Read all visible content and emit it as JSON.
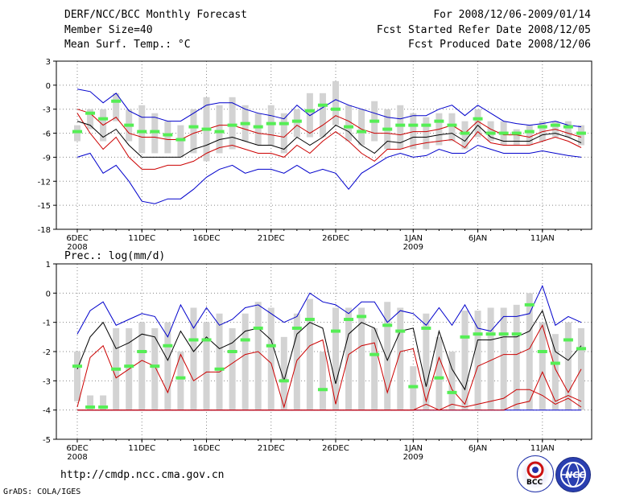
{
  "header": {
    "title": "DERF/NCC/BCC Monthly Forecast",
    "member_size": "Member Size=40",
    "variable": "Mean Surf. Temp.: °C",
    "forecast_period": "For 2008/12/06-2009/01/14",
    "start_date": "Fcst Started Refer Date 2008/12/05",
    "produced_date": "Fcst Produced Date 2008/12/06"
  },
  "footer": {
    "url": "http://cmdp.ncc.cma.gov.cn",
    "grads_credit": "GrADS: COLA/IGES",
    "logo_left": "BCC",
    "logo_right": "NCC"
  },
  "colors": {
    "max_min": "#0000cc",
    "spread": "#cc0000",
    "mean": "#000000",
    "box": "#d3d3d3",
    "median": "#55ee55"
  },
  "chart_data": [
    {
      "type": "line",
      "title": "Mean Surf. Temp.: °C",
      "ylabel": "°C",
      "ylim": [
        -18,
        3
      ],
      "yticks": [
        3,
        0,
        -3,
        -6,
        -9,
        -12,
        -15,
        -18
      ],
      "xtick_labels": [
        {
          "day": 0,
          "label": "6DEC",
          "sub": "2008"
        },
        {
          "day": 5,
          "label": "11DEC"
        },
        {
          "day": 10,
          "label": "16DEC"
        },
        {
          "day": 15,
          "label": "21DEC"
        },
        {
          "day": 20,
          "label": "26DEC"
        },
        {
          "day": 26,
          "label": "1JAN",
          "sub": "2009"
        },
        {
          "day": 31,
          "label": "6JAN"
        },
        {
          "day": 36,
          "label": "11JAN"
        }
      ],
      "days": 40,
      "series": [
        {
          "name": "max",
          "values": [
            -0.5,
            -0.8,
            -2.2,
            -1,
            -3.2,
            -4,
            -4,
            -4.5,
            -4.5,
            -3.5,
            -2.5,
            -2.2,
            -2.2,
            -3,
            -3.5,
            -3.8,
            -4.2,
            -2.5,
            -3.8,
            -2.8,
            -1.8,
            -2.5,
            -3,
            -3.5,
            -4,
            -4.2,
            -3.8,
            -3.8,
            -3,
            -2.5,
            -3.8,
            -2.5,
            -3.5,
            -4.5,
            -4.8,
            -5,
            -4.8,
            -4.5,
            -5,
            -5.2
          ]
        },
        {
          "name": "p75",
          "values": [
            -3,
            -3.5,
            -5,
            -4,
            -6,
            -6.5,
            -6.5,
            -6.8,
            -6.8,
            -6,
            -5.5,
            -5,
            -5,
            -5.5,
            -6,
            -6.2,
            -6.5,
            -5,
            -6,
            -5,
            -3.8,
            -4.5,
            -5.5,
            -6,
            -6,
            -6.2,
            -5.8,
            -5.8,
            -5.5,
            -5,
            -6,
            -4.5,
            -5.5,
            -6.2,
            -6.2,
            -6.5,
            -5.8,
            -5.5,
            -6,
            -6.5
          ]
        },
        {
          "name": "mean",
          "values": [
            -4.5,
            -5,
            -6.5,
            -5.5,
            -7.5,
            -9,
            -9,
            -9,
            -9,
            -8,
            -7.5,
            -6.8,
            -6.5,
            -7,
            -7.5,
            -7.5,
            -8,
            -6.5,
            -7.5,
            -6.5,
            -5,
            -5.8,
            -7.5,
            -8.5,
            -7,
            -7.2,
            -6.5,
            -6.5,
            -6.2,
            -6,
            -7,
            -5,
            -6.5,
            -7,
            -7,
            -7,
            -6.2,
            -6,
            -6.5,
            -7.2
          ]
        },
        {
          "name": "p25",
          "values": [
            -3.5,
            -6,
            -8,
            -6.5,
            -9,
            -10.5,
            -10.5,
            -10,
            -10,
            -9.5,
            -8.5,
            -7.8,
            -7.5,
            -8,
            -8.5,
            -8.5,
            -9,
            -7.5,
            -8.5,
            -7,
            -5.8,
            -7,
            -8.5,
            -9.5,
            -8,
            -8,
            -7.5,
            -7.2,
            -7,
            -6.8,
            -7.8,
            -5.8,
            -7.2,
            -7.5,
            -7.5,
            -7.5,
            -7,
            -6.5,
            -7,
            -7.8
          ]
        },
        {
          "name": "min",
          "values": [
            -9,
            -8.5,
            -11,
            -10,
            -12,
            -14.5,
            -14.8,
            -14.2,
            -14.2,
            -13,
            -11.5,
            -10.5,
            -10,
            -11,
            -10.5,
            -10.5,
            -11,
            -10,
            -11,
            -10.5,
            -11,
            -13,
            -11,
            -10,
            -9,
            -8.5,
            -9,
            -8.8,
            -8,
            -8.5,
            -8.5,
            -7.5,
            -8,
            -8.5,
            -8.5,
            -8.5,
            -8.2,
            -8.5,
            -8.8,
            -9
          ]
        },
        {
          "name": "median",
          "values": [
            -5.8,
            -3.5,
            -4.2,
            -2,
            -5,
            -5.8,
            -5.8,
            -6.2,
            -6.8,
            -5.2,
            -5.5,
            -5.8,
            -5,
            -4.8,
            -5.2,
            -4.8,
            -4.8,
            -4.5,
            -3.2,
            -2.5,
            -3,
            -5.2,
            -5.8,
            -4.5,
            -5.5,
            -5,
            -5,
            -5,
            -4.5,
            -5,
            -6,
            -4.2,
            -6,
            -6,
            -6,
            -5.8,
            -5.2,
            -5,
            -5.2,
            -6
          ]
        },
        {
          "name": "box_top",
          "values": [
            -5,
            -3,
            -3,
            -1,
            -3,
            -2.5,
            -3.5,
            -4.5,
            -5,
            -3,
            -1.5,
            -2.5,
            -1.5,
            -2.5,
            -3.5,
            -2.5,
            -3.5,
            -3,
            -1,
            -1,
            0.5,
            -2.5,
            -3,
            -2,
            -3,
            -2.5,
            -3.5,
            -4,
            -3.5,
            -3.5,
            -4.5,
            -3,
            -4.5,
            -4.5,
            -5.5,
            -5,
            -4.5,
            -4.5,
            -4.5,
            -5
          ]
        },
        {
          "name": "box_bottom",
          "values": [
            -7,
            -5.5,
            -7,
            -4.5,
            -7,
            -8.5,
            -8.5,
            -8.5,
            -9,
            -8.5,
            -9.5,
            -8.5,
            -8,
            -7,
            -7.5,
            -7.5,
            -8.5,
            -6.5,
            -6.5,
            -6.5,
            -5,
            -7,
            -7.5,
            -7,
            -8,
            -8,
            -8,
            -8,
            -7.5,
            -7,
            -8,
            -6.5,
            -7,
            -7.5,
            -7.5,
            -7.5,
            -7,
            -6.5,
            -6.5,
            -7.5
          ]
        }
      ]
    },
    {
      "type": "line",
      "title": "Prec.: log(mm/d)",
      "ylabel": "log(mm/d)",
      "ylim": [
        -5,
        1
      ],
      "yticks": [
        1,
        0,
        -1,
        -2,
        -3,
        -4,
        -5
      ],
      "xtick_labels": [
        {
          "day": 0,
          "label": "6DEC",
          "sub": "2008"
        },
        {
          "day": 5,
          "label": "11DEC"
        },
        {
          "day": 10,
          "label": "16DEC"
        },
        {
          "day": 15,
          "label": "21DEC"
        },
        {
          "day": 20,
          "label": "26DEC"
        },
        {
          "day": 26,
          "label": "1JAN",
          "sub": "2009"
        },
        {
          "day": 31,
          "label": "6JAN"
        },
        {
          "day": 36,
          "label": "11JAN"
        }
      ],
      "days": 40,
      "series": [
        {
          "name": "max",
          "values": [
            -1.4,
            -0.6,
            -0.3,
            -1.1,
            -0.9,
            -0.7,
            -0.8,
            -1.5,
            -0.4,
            -1.2,
            -0.5,
            -1.1,
            -0.9,
            -0.5,
            -0.4,
            -0.7,
            -1,
            -0.8,
            0,
            -0.3,
            -0.4,
            -0.7,
            -0.3,
            -0.3,
            -1,
            -0.6,
            -0.7,
            -1.1,
            -0.5,
            -1.1,
            -0.4,
            -1.2,
            -1.3,
            -0.8,
            -0.8,
            -0.7,
            0.25,
            -1.1,
            -0.8,
            -1
          ]
        },
        {
          "name": "mean",
          "values": [
            -2.6,
            -1.5,
            -1,
            -1.9,
            -1.7,
            -1.4,
            -1.5,
            -2.3,
            -1.3,
            -2,
            -1.5,
            -1.9,
            -1.7,
            -1.3,
            -1.2,
            -1.6,
            -3,
            -1.4,
            -1,
            -1.2,
            -3.1,
            -1.4,
            -1,
            -1.2,
            -2.3,
            -1.3,
            -1.2,
            -3.2,
            -1.3,
            -2.6,
            -3.3,
            -1.6,
            -1.6,
            -1.5,
            -1.5,
            -1.3,
            -0.6,
            -2,
            -2.3,
            -1.8
          ]
        },
        {
          "name": "p25",
          "values": [
            -3.9,
            -2.2,
            -1.8,
            -2.9,
            -2.6,
            -2.3,
            -2.5,
            -3.4,
            -2.1,
            -3,
            -2.7,
            -2.7,
            -2.4,
            -2.1,
            -2,
            -2.4,
            -3.9,
            -2.3,
            -1.8,
            -1.6,
            -3.8,
            -2.1,
            -1.8,
            -1.7,
            -3.4,
            -2,
            -1.9,
            -3.7,
            -2.2,
            -3.3,
            -3.8,
            -2.5,
            -2.3,
            -2.1,
            -2.1,
            -1.9,
            -1.1,
            -2.6,
            -3.4,
            -2.6
          ]
        },
        {
          "name": "p75",
          "values": [
            -4,
            -4,
            -4,
            -4,
            -4,
            -4,
            -4,
            -4,
            -4,
            -4,
            -4,
            -4,
            -4,
            -4,
            -4,
            -4,
            -4,
            -4,
            -4,
            -4,
            -4,
            -4,
            -4,
            -4,
            -4,
            -4,
            -4,
            -4,
            -4,
            -4,
            -4,
            -4,
            -4,
            -4,
            -3.8,
            -3.7,
            -2.7,
            -3.7,
            -3.5,
            -3.7
          ]
        },
        {
          "name": "p25b",
          "values": [
            -4,
            -4,
            -4,
            -4,
            -4,
            -4,
            -4,
            -4,
            -4,
            -4,
            -4,
            -4,
            -4,
            -4,
            -4,
            -4,
            -4,
            -4,
            -4,
            -4,
            -4,
            -4,
            -4,
            -4,
            -4,
            -4,
            -4,
            -3.8,
            -4,
            -3.8,
            -3.9,
            -3.8,
            -3.7,
            -3.6,
            -3.3,
            -3.3,
            -3.5,
            -3.8,
            -3.6,
            -3.9
          ]
        },
        {
          "name": "min",
          "values": [
            -4,
            -4,
            -4,
            -4,
            -4,
            -4,
            -4,
            -4,
            -4,
            -4,
            -4,
            -4,
            -4,
            -4,
            -4,
            -4,
            -4,
            -4,
            -4,
            -4,
            -4,
            -4,
            -4,
            -4,
            -4,
            -4,
            -4,
            -4,
            -4,
            -4,
            -4,
            -4,
            -4,
            -4,
            -4,
            -4,
            -4,
            -4,
            -4,
            -4
          ]
        },
        {
          "name": "median",
          "values": [
            -2.5,
            -3.9,
            -3.9,
            -2.6,
            -2.5,
            -2,
            -2.5,
            -1.8,
            -2.9,
            -1.6,
            -1.6,
            -2.6,
            -2,
            -1.6,
            -1.2,
            -1.8,
            -3,
            -1.2,
            -0.9,
            -3.3,
            -1.3,
            -0.9,
            -0.8,
            -2.1,
            -1.1,
            -1.3,
            -3.2,
            -1.2,
            -2.9,
            -3.4,
            -1.5,
            -1.4,
            -1.4,
            -1.4,
            -1.4,
            -0.4,
            -2,
            -2.4,
            -1.6,
            -1.9
          ]
        },
        {
          "name": "box_top",
          "values": [
            -2,
            -3.5,
            -3.5,
            -1.2,
            -1.2,
            -1,
            -1.2,
            -1,
            -2,
            -0.5,
            -1,
            -0.7,
            -1.2,
            -0.7,
            -0.3,
            -0.5,
            -1.5,
            -0.7,
            -0.2,
            -2,
            -0.5,
            -0.5,
            -0.5,
            -1.2,
            -0.3,
            -0.5,
            -2.5,
            -0.7,
            -1.5,
            -2,
            -0.6,
            -0.6,
            -0.5,
            -0.5,
            -0.4,
            0,
            -1,
            -1.4,
            -1,
            -1.2
          ]
        },
        {
          "name": "box_bottom",
          "values": [
            -3.7,
            -4,
            -4,
            -4,
            -4,
            -4,
            -4,
            -4,
            -4,
            -4,
            -4,
            -4,
            -4,
            -4,
            -4,
            -4,
            -4,
            -4,
            -4,
            -4,
            -4,
            -4,
            -4,
            -4,
            -4,
            -4,
            -4,
            -4,
            -4,
            -4,
            -4,
            -4,
            -4,
            -4,
            -4,
            -4,
            -4,
            -4,
            -4,
            -4
          ]
        }
      ]
    }
  ]
}
